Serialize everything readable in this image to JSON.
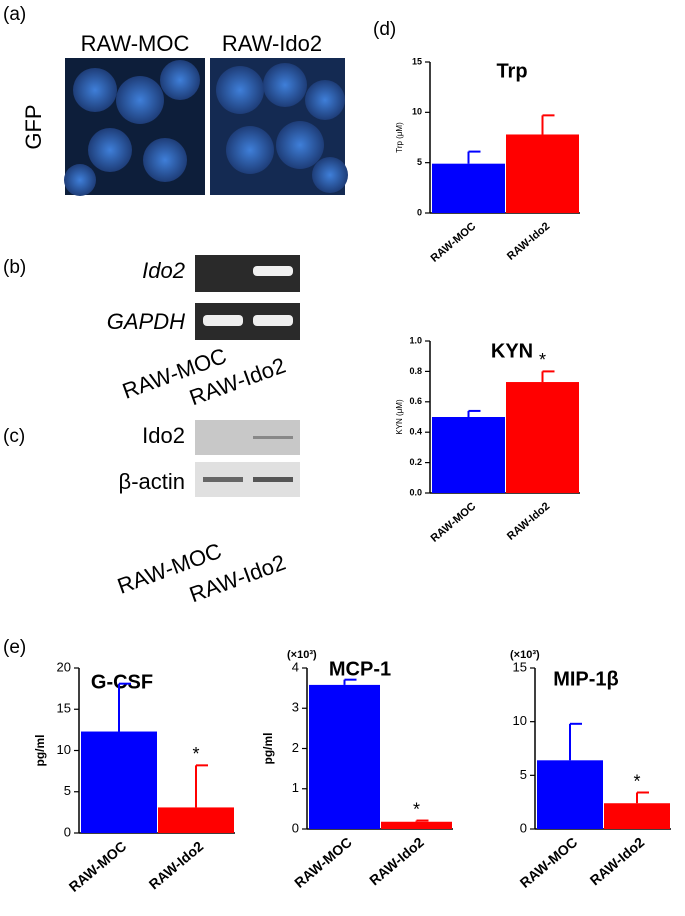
{
  "panels": {
    "a": {
      "label": "(a)",
      "columns": [
        "RAW-MOC",
        "RAW-Ido2"
      ],
      "row": "GFP"
    },
    "b": {
      "label": "(b)",
      "rows": [
        "Ido2",
        "GAPDH"
      ],
      "columns": [
        "RAW-MOC",
        "RAW-Ido2"
      ]
    },
    "c": {
      "label": "(c)",
      "rows": [
        "Ido2",
        "β-actin"
      ],
      "columns": [
        "RAW-MOC",
        "RAW-Ido2"
      ]
    },
    "d": {
      "label": "(d)"
    },
    "e": {
      "label": "(e)"
    }
  },
  "chart_data": [
    {
      "type": "bar",
      "title": "Trp",
      "y_label": "Trp (μM)",
      "categories": [
        "RAW-MOC",
        "RAW-Ido2"
      ],
      "values": [
        4.9,
        7.8
      ],
      "errors": [
        1.2,
        1.9
      ],
      "colors": [
        "#0000ff",
        "#ff0000"
      ],
      "ylim": [
        0,
        15
      ],
      "yticks": [
        0,
        5,
        10,
        15
      ]
    },
    {
      "type": "bar",
      "title": "KYN",
      "y_label": "KYN (μM)",
      "categories": [
        "RAW-MOC",
        "RAW-Ido2"
      ],
      "values": [
        0.5,
        0.73
      ],
      "errors": [
        0.04,
        0.07
      ],
      "colors": [
        "#0000ff",
        "#ff0000"
      ],
      "annotations": [
        null,
        "*"
      ],
      "ylim": [
        0,
        1
      ],
      "yticks": [
        {
          "value": 0,
          "label": "0.0"
        },
        0.2,
        0.4,
        0.6,
        0.8,
        {
          "value": 1,
          "label": "1.0"
        }
      ]
    },
    {
      "type": "bar",
      "title": "G-CSF",
      "y_label": "pg/ml",
      "categories": [
        "RAW-MOC",
        "RAW-Ido2"
      ],
      "values": [
        12.3,
        3.1
      ],
      "errors": [
        5.8,
        5.1
      ],
      "colors": [
        "#0000ff",
        "#ff0000"
      ],
      "annotations": [
        null,
        "*"
      ],
      "ylim": [
        0,
        20
      ],
      "yticks": [
        0,
        5,
        10,
        15,
        20
      ]
    },
    {
      "type": "bar",
      "title": "MCP-1",
      "unit": "(×10³)",
      "y_label": "pg/ml",
      "categories": [
        "RAW-MOC",
        "RAW-Ido2"
      ],
      "values": [
        3.58,
        0.18
      ],
      "errors": [
        0.13,
        0.03
      ],
      "colors": [
        "#0000ff",
        "#ff0000"
      ],
      "annotations": [
        null,
        "*"
      ],
      "ylim": [
        0,
        4
      ],
      "yticks": [
        0,
        1,
        2,
        3,
        4
      ]
    },
    {
      "type": "bar",
      "title": "MIP-1β",
      "unit": "(×10³)",
      "categories": [
        "RAW-MOC",
        "RAW-Ido2"
      ],
      "values": [
        6.4,
        2.4
      ],
      "errors": [
        3.4,
        1.0
      ],
      "colors": [
        "#0000ff",
        "#ff0000"
      ],
      "annotations": [
        null,
        "*"
      ],
      "ylim": [
        0,
        15
      ],
      "yticks": [
        0,
        5,
        10,
        15
      ]
    }
  ]
}
